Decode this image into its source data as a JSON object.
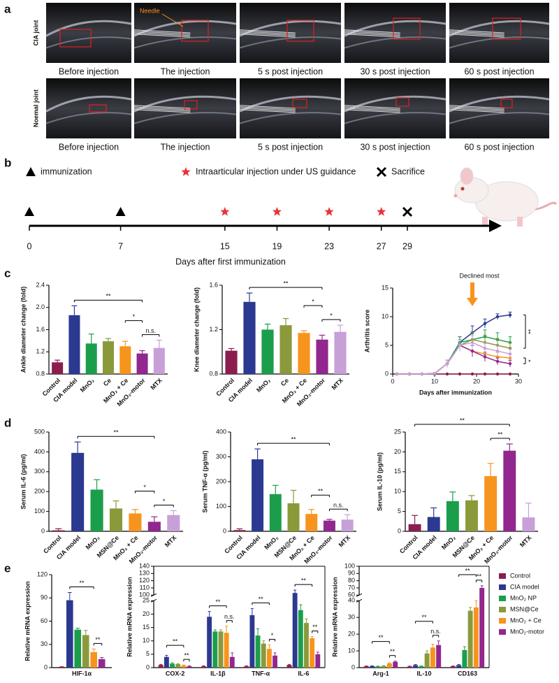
{
  "panel_labels": [
    "a",
    "b",
    "c",
    "d",
    "e"
  ],
  "panel_a": {
    "needle_label": "Needle",
    "rows": [
      {
        "label": "CIA joint",
        "captions": [
          "Before injection",
          "The injection",
          "5 s post injection",
          "30 s post injection",
          "60 s post injection"
        ]
      },
      {
        "label": "Noemal joint",
        "captions": [
          "Before injection",
          "The injection",
          "5 s post injection",
          "30 s post injection",
          "60 s post injection"
        ]
      }
    ]
  },
  "timeline": {
    "xlabel": "Days after first immunization",
    "xticks": [
      0,
      7,
      15,
      19,
      23,
      27,
      29
    ],
    "events": [
      {
        "label": "immunization",
        "days": [
          0,
          7
        ]
      },
      {
        "label": "Intraarticular injection under US guidance",
        "days": [
          15,
          19,
          23,
          27
        ]
      },
      {
        "label": "Sacrifice",
        "days": [
          29
        ]
      }
    ]
  },
  "chart_data": [
    {
      "type": "bar",
      "ylabel": "Ankle diameter change (fold)",
      "categories": [
        "Control",
        "CIA model",
        "MnO₂",
        "Ce",
        "MnO₂ + Ce",
        "MnO₂-motor",
        "MTX"
      ],
      "colors": [
        "#8b1e4f",
        "#2b3990",
        "#1b9e4b",
        "#8a9a3b",
        "#f7941d",
        "#92278f",
        "#c7a0d8"
      ],
      "values": [
        1.01,
        1.86,
        1.35,
        1.39,
        1.3,
        1.17,
        1.27
      ],
      "errors": [
        0.04,
        0.17,
        0.17,
        0.05,
        0.09,
        0.05,
        0.14
      ],
      "ylim": [
        0.8,
        2.4
      ],
      "yticks": [
        0.8,
        1.2,
        1.6,
        {
          "value": 2,
          "label": "2.0"
        },
        2.4
      ],
      "annotations": [
        {
          "from": 1,
          "to": 5,
          "label": "**"
        },
        {
          "from": 4,
          "to": 5,
          "label": "*"
        },
        {
          "from": 5,
          "to": 6,
          "label": "n.s."
        }
      ]
    },
    {
      "type": "bar",
      "ylabel": "Knee diameter change (fold)",
      "categories": [
        "Control",
        "CIA model",
        "MnO₂",
        "Ce",
        "MnO₂ + Ce",
        "MnO₂-motor",
        "MTX"
      ],
      "colors": [
        "#8b1e4f",
        "#2b3990",
        "#1b9e4b",
        "#8a9a3b",
        "#f7941d",
        "#92278f",
        "#c7a0d8"
      ],
      "values": [
        1.01,
        1.45,
        1.2,
        1.24,
        1.17,
        1.11,
        1.18
      ],
      "errors": [
        0.02,
        0.08,
        0.05,
        0.06,
        0.02,
        0.04,
        0.06
      ],
      "ylim": [
        0.8,
        1.6
      ],
      "yticks": [
        0.8,
        1.2,
        1.6
      ],
      "annotations": [
        {
          "from": 1,
          "to": 5,
          "label": "**"
        },
        {
          "from": 4,
          "to": 5,
          "label": "*"
        },
        {
          "from": 5,
          "to": 6,
          "label": "*"
        }
      ]
    },
    {
      "type": "line",
      "xlabel": "Days after immunization",
      "ylabel": "Arthritis score",
      "x": [
        1,
        4,
        7,
        10,
        13,
        16,
        19,
        22,
        25,
        28
      ],
      "xlim": [
        0,
        30
      ],
      "xticks": [
        0,
        10,
        20,
        30
      ],
      "ylim": [
        0,
        15
      ],
      "yticks": [
        0,
        5,
        10,
        15
      ],
      "series": [
        {
          "color": "#8b1e4f",
          "values": [
            0,
            0,
            0,
            0,
            0,
            0,
            0,
            0,
            0,
            0
          ],
          "errors": [
            0,
            0,
            0,
            0,
            0,
            0,
            0,
            0,
            0,
            0
          ]
        },
        {
          "color": "#2b3990",
          "values": [
            0,
            0,
            0,
            0.1,
            1.8,
            5.5,
            7.2,
            8.8,
            10,
            10.3
          ],
          "errors": [
            0,
            0,
            0,
            0.1,
            0.6,
            1,
            1.2,
            0.8,
            0.5,
            0.5
          ]
        },
        {
          "color": "#1b9e4b",
          "values": [
            0,
            0,
            0,
            0.1,
            1.8,
            5.5,
            6,
            6.5,
            6,
            5.5
          ],
          "errors": [
            0,
            0,
            0,
            0.1,
            0.6,
            1,
            1.3,
            1.2,
            1.2,
            1
          ]
        },
        {
          "color": "#8a9a3b",
          "values": [
            0,
            0,
            0,
            0.1,
            1.8,
            5,
            6,
            5.5,
            5,
            4.5
          ],
          "errors": [
            0,
            0,
            0,
            0.1,
            0.6,
            1,
            1.2,
            1.3,
            1.2,
            1
          ]
        },
        {
          "color": "#f7941d",
          "values": [
            0,
            0,
            0,
            0.1,
            1.8,
            5,
            4,
            3.5,
            3,
            2.8
          ],
          "errors": [
            0,
            0,
            0,
            0.1,
            0.6,
            1,
            1,
            0.9,
            0.8,
            0.7
          ]
        },
        {
          "color": "#92278f",
          "values": [
            0,
            0,
            0,
            0.1,
            1.8,
            5,
            4,
            3,
            2.2,
            1.8
          ],
          "errors": [
            0,
            0,
            0,
            0.1,
            0.6,
            1,
            1,
            0.8,
            0.6,
            0.6
          ]
        },
        {
          "color": "#c7a0d8",
          "values": [
            0,
            0,
            0,
            0.1,
            1.8,
            5,
            5.5,
            4.5,
            4,
            3.5
          ],
          "errors": [
            0,
            0,
            0,
            0.1,
            0.6,
            1,
            1.2,
            1,
            0.9,
            0.8
          ]
        }
      ],
      "arrow": {
        "x": 19,
        "label": "Declined most"
      },
      "annotations": [
        {
          "from": 1,
          "to": 3,
          "label": "**"
        },
        {
          "from": 4,
          "to": 5,
          "label": "*"
        }
      ]
    },
    {
      "type": "bar",
      "ylabel": "Serum IL-6 (pg/ml)",
      "categories": [
        "Control",
        "CIA model",
        "MnO₂",
        "MSN@Ce",
        "MnO₂ + Ce",
        "MnO₂-motor",
        "MTX"
      ],
      "colors": [
        "#8b1e4f",
        "#2b3990",
        "#1b9e4b",
        "#8a9a3b",
        "#f7941d",
        "#92278f",
        "#c7a0d8"
      ],
      "values": [
        5,
        395,
        210,
        115,
        90,
        48,
        82
      ],
      "errors": [
        8,
        55,
        50,
        38,
        20,
        25,
        22
      ],
      "ylim": [
        0,
        500
      ],
      "yticks": [
        0,
        100,
        200,
        300,
        400,
        500
      ],
      "annotations": [
        {
          "from": 1,
          "to": 5,
          "label": "**"
        },
        {
          "from": 4,
          "to": 5,
          "label": "*"
        },
        {
          "from": 5,
          "to": 6,
          "label": "*"
        }
      ]
    },
    {
      "type": "bar",
      "ylabel": "Serum TNF-α (pg/ml)",
      "categories": [
        "Control",
        "CIA model",
        "MnO₂",
        "MSN@Ce",
        "MnO₂ + Ce",
        "MnO₂-motor",
        "MTX"
      ],
      "colors": [
        "#8b1e4f",
        "#2b3990",
        "#1b9e4b",
        "#8a9a3b",
        "#f7941d",
        "#92278f",
        "#c7a0d8"
      ],
      "values": [
        5,
        290,
        150,
        113,
        70,
        43,
        47
      ],
      "errors": [
        5,
        42,
        35,
        52,
        18,
        5,
        20
      ],
      "ylim": [
        0,
        400
      ],
      "yticks": [
        0,
        100,
        200,
        300,
        400
      ],
      "annotations": [
        {
          "from": 1,
          "to": 5,
          "label": "**"
        },
        {
          "from": 4,
          "to": 5,
          "label": "**"
        },
        {
          "from": 5,
          "to": 6,
          "label": "n.s."
        }
      ]
    },
    {
      "type": "bar",
      "ylabel": "Serum IL-10 (pg/ml)",
      "categories": [
        "Control",
        "CIA model",
        "MnO₂",
        "MSN@Ce",
        "MnO₂ + Ce",
        "MnO₂-motor",
        "MTX"
      ],
      "colors": [
        "#8b1e4f",
        "#2b3990",
        "#1b9e4b",
        "#8a9a3b",
        "#f7941d",
        "#92278f",
        "#c7a0d8"
      ],
      "values": [
        1.8,
        3.6,
        7.6,
        7.8,
        13.9,
        20.3,
        3.5
      ],
      "errors": [
        2.2,
        2.3,
        2.3,
        1.2,
        3.2,
        1.7,
        3.6
      ],
      "ylim": [
        0,
        25
      ],
      "yticks": [
        0,
        5,
        10,
        15,
        20,
        25
      ],
      "annotations": [
        {
          "from": 0,
          "to": 5,
          "label": "**"
        },
        {
          "from": 4,
          "to": 5,
          "label": "**"
        }
      ]
    },
    {
      "type": "grouped_bar",
      "ylabel": "Relative mRNA expression",
      "categories": [
        "HIF-1α"
      ],
      "series": [
        {
          "color": "#8b1e4f",
          "values": [
            0.9
          ],
          "errors": [
            0.3
          ]
        },
        {
          "color": "#2b3990",
          "values": [
            87
          ],
          "errors": [
            10
          ]
        },
        {
          "color": "#1b9e4b",
          "values": [
            49
          ],
          "errors": [
            2
          ]
        },
        {
          "color": "#8a9a3b",
          "values": [
            42
          ],
          "errors": [
            6
          ]
        },
        {
          "color": "#f7941d",
          "values": [
            20
          ],
          "errors": [
            4
          ]
        },
        {
          "color": "#92278f",
          "values": [
            11
          ],
          "errors": [
            2
          ]
        }
      ],
      "ylim": [
        0,
        120
      ],
      "yticks": [
        0,
        30,
        60,
        90,
        120
      ],
      "annotations": [
        {
          "category": 0,
          "from": 1,
          "to": 4,
          "label": "**"
        },
        {
          "category": 0,
          "from": 4,
          "to": 5,
          "label": "**"
        }
      ]
    },
    {
      "type": "grouped_bar",
      "ylabel": "Relative mRNA expression",
      "categories": [
        "COX-2",
        "IL-1β",
        "TNF-α",
        "IL-6"
      ],
      "series": [
        {
          "color": "#8b1e4f",
          "values": [
            1,
            0.5,
            0.5,
            1
          ],
          "errors": [
            0.2,
            0.2,
            0.2,
            0.2
          ]
        },
        {
          "color": "#2b3990",
          "values": [
            4,
            19,
            19.6,
            103
          ],
          "errors": [
            0.6,
            2,
            2.5,
            4
          ]
        },
        {
          "color": "#1b9e4b",
          "values": [
            1.5,
            13.5,
            12,
            21.5
          ],
          "errors": [
            0.3,
            0.6,
            2.5,
            2
          ]
        },
        {
          "color": "#8a9a3b",
          "values": [
            1.3,
            13.5,
            9,
            16.7
          ],
          "errors": [
            0.2,
            0.6,
            1,
            1.5
          ]
        },
        {
          "color": "#f7941d",
          "values": [
            0.8,
            13,
            7,
            11
          ],
          "errors": [
            0.2,
            2.5,
            1.5,
            0.6
          ]
        },
        {
          "color": "#92278f",
          "values": [
            0.5,
            4,
            4.5,
            5
          ],
          "errors": [
            0.2,
            1.5,
            1,
            0.8
          ]
        }
      ],
      "ylims": [
        [
          0,
          25
        ],
        [
          100,
          140
        ]
      ],
      "yticks": [
        0,
        5,
        10,
        15,
        20,
        25,
        100,
        110,
        120,
        130,
        140
      ],
      "annotations": [
        {
          "category": 0,
          "from": 1,
          "to": 4,
          "label": "**"
        },
        {
          "category": 0,
          "from": 4,
          "to": 5,
          "label": "**"
        },
        {
          "category": 1,
          "from": 1,
          "to": 4,
          "label": "**"
        },
        {
          "category": 1,
          "from": 4,
          "to": 5,
          "label": "n.s."
        },
        {
          "category": 2,
          "from": 1,
          "to": 4,
          "label": "**"
        },
        {
          "category": 2,
          "from": 4,
          "to": 5,
          "label": "*"
        },
        {
          "category": 3,
          "from": 1,
          "to": 4,
          "label": "**"
        },
        {
          "category": 3,
          "from": 4,
          "to": 5,
          "label": "**"
        }
      ]
    },
    {
      "type": "grouped_bar",
      "ylabel": "Relative mRNA expression",
      "categories": [
        "Arg-1",
        "IL-10",
        "CD163"
      ],
      "series": [
        {
          "name": "Control",
          "color": "#8b1e4f",
          "values": [
            0.8,
            0.7,
            0.8
          ],
          "errors": [
            0.2,
            0.2,
            0.2
          ]
        },
        {
          "name": "CIA model",
          "color": "#2b3990",
          "values": [
            0.9,
            1.5,
            1.5
          ],
          "errors": [
            0.2,
            0.4,
            0.4
          ]
        },
        {
          "name": "MnO₂ NP",
          "color": "#1b9e4b",
          "values": [
            0.7,
            0.8,
            10.5
          ],
          "errors": [
            0.2,
            0.2,
            2
          ]
        },
        {
          "name": "MSN@Ce",
          "color": "#8a9a3b",
          "values": [
            1,
            8.5,
            34
          ],
          "errors": [
            0.2,
            1.5,
            2
          ]
        },
        {
          "name": "MnO₂ + Ce",
          "color": "#f7941d",
          "values": [
            2.5,
            12,
            36
          ],
          "errors": [
            0.4,
            2,
            4
          ]
        },
        {
          "name": "MnO₂-motor",
          "color": "#92278f",
          "values": [
            3.5,
            13.5,
            70
          ],
          "errors": [
            0.4,
            2.5,
            3
          ]
        }
      ],
      "ylims": [
        [
          0,
          40
        ],
        [
          60,
          100
        ]
      ],
      "yticks": [
        0,
        10,
        20,
        30,
        40,
        60,
        70,
        80,
        90,
        100
      ],
      "annotations": [
        {
          "category": 0,
          "from": 1,
          "to": 4,
          "label": "**"
        },
        {
          "category": 0,
          "from": 4,
          "to": 5,
          "label": "**"
        },
        {
          "category": 1,
          "from": 1,
          "to": 4,
          "label": "**"
        },
        {
          "category": 1,
          "from": 4,
          "to": 5,
          "label": "n.s."
        },
        {
          "category": 2,
          "from": 1,
          "to": 4,
          "label": "**"
        },
        {
          "category": 2,
          "from": 4,
          "to": 5,
          "label": "**"
        }
      ]
    }
  ]
}
